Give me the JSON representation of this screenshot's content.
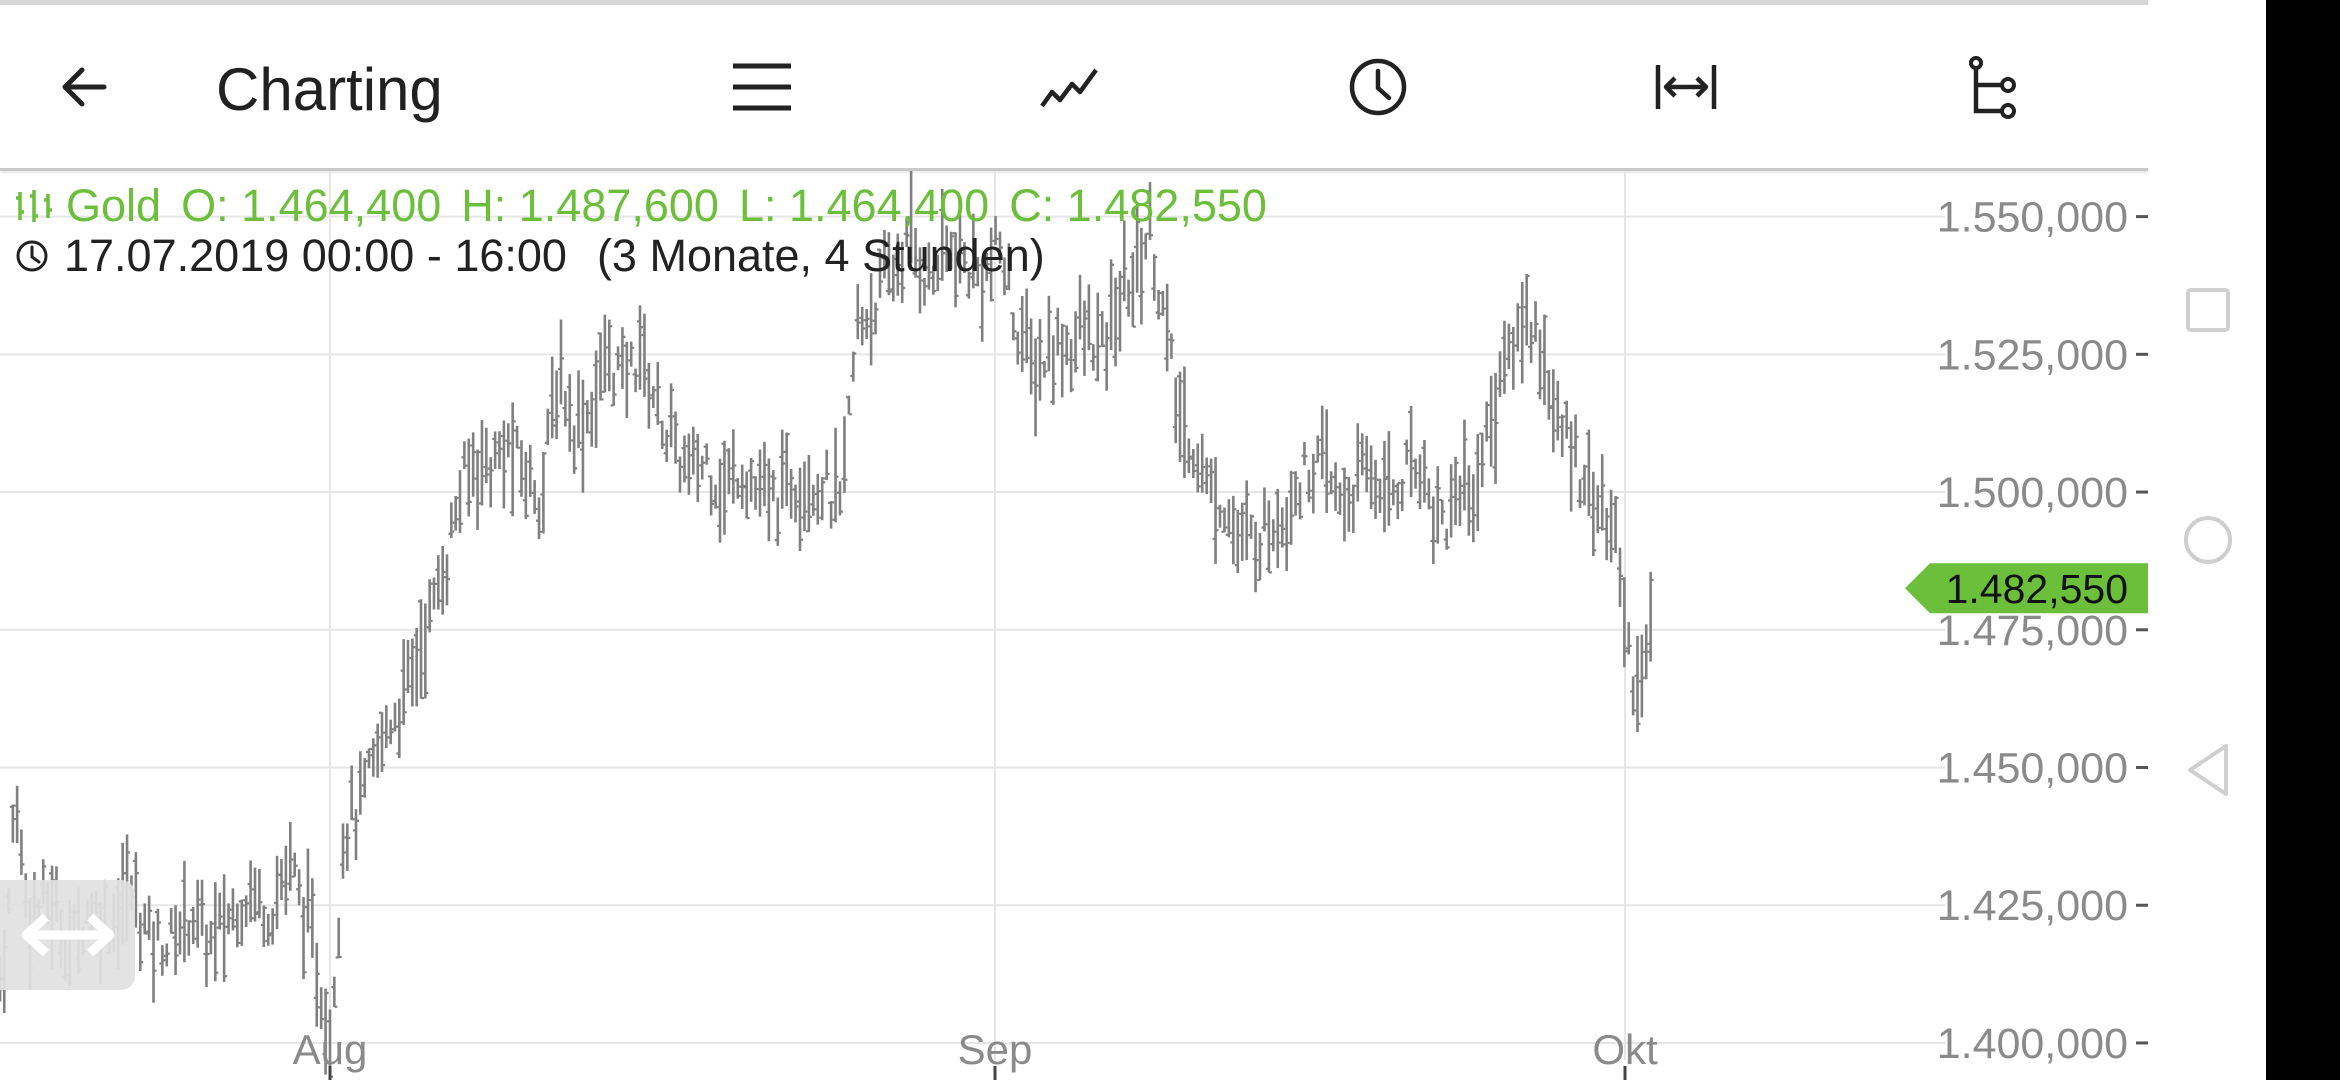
{
  "appbar": {
    "title": "Charting",
    "icons": [
      "arrow-left-icon",
      "menu-icon",
      "line-chart-icon",
      "clock-icon",
      "range-arrows-icon",
      "tree-icon"
    ]
  },
  "chart_info": {
    "instrument": "Gold",
    "open": "O: 1.464,400",
    "high": "H: 1.487,600",
    "low": "L: 1.464,400",
    "close": "C: 1.482,550",
    "time_range": "17.07.2019 00:00 - 16:00",
    "period": "(3 Monate, 4 Stunden)"
  },
  "price_tag": {
    "label": "1.482,550",
    "value": 1482550,
    "color": "#6cbf3a"
  },
  "nav": {
    "icons": [
      "square-icon",
      "circle-icon",
      "triangle-back-icon"
    ]
  },
  "chart_data": {
    "type": "ohlc",
    "x_ticks": [
      "Aug",
      "Sep",
      "Okt"
    ],
    "y_ticks": [
      "1.400,000",
      "1.425,000",
      "1.450,000",
      "1.475,000",
      "1.500,000",
      "1.525,000",
      "1.550,000"
    ],
    "y_tick_values": [
      1400000,
      1425000,
      1450000,
      1475000,
      1500000,
      1525000,
      1550000
    ],
    "ylim": [
      1396000,
      1561000
    ],
    "grid": true,
    "bar_color": "#808080",
    "series": [
      {
        "x_start": 0,
        "x_end": 30,
        "values": [
          1412000,
          1417000,
          1427000,
          1448000,
          1437000,
          1428000,
          1424000
        ]
      },
      {
        "x_start": 30,
        "x_end": 330,
        "values": [
          1424000,
          1426000,
          1418000,
          1425000,
          1422000,
          1428000,
          1419000,
          1418000,
          1424000,
          1418000,
          1423000,
          1428000,
          1424000,
          1433000,
          1420000,
          1401000
        ]
      },
      {
        "x_start": 330,
        "x_end": 460,
        "values": [
          1401000,
          1440000,
          1442000,
          1450000,
          1458000,
          1462000,
          1470000,
          1478000,
          1487000,
          1500000
        ]
      },
      {
        "x_start": 460,
        "x_end": 640,
        "values": [
          1500000,
          1506000,
          1505000,
          1508000,
          1503000,
          1500000,
          1522000,
          1512000,
          1515000,
          1525000,
          1520000,
          1526000
        ]
      },
      {
        "x_start": 640,
        "x_end": 840,
        "values": [
          1526000,
          1516000,
          1508000,
          1503000,
          1506000,
          1500000,
          1505000,
          1500000,
          1498000,
          1502000,
          1503000,
          1501000,
          1497000
        ]
      },
      {
        "x_start": 840,
        "x_end": 1000,
        "values": [
          1497000,
          1530000,
          1535000,
          1540000,
          1546000,
          1538000,
          1544000,
          1541000,
          1539000,
          1544000
        ]
      },
      {
        "x_start": 1000,
        "x_end": 1120,
        "values": [
          1544000,
          1530000,
          1522000,
          1526000,
          1527000,
          1529000,
          1525000,
          1535000
        ]
      },
      {
        "x_start": 1120,
        "x_end": 1180,
        "values": [
          1535000,
          1540000,
          1548000,
          1530000,
          1512000
        ]
      },
      {
        "x_start": 1180,
        "x_end": 1300,
        "values": [
          1512000,
          1508000,
          1500000,
          1498000,
          1490000,
          1492000,
          1494000,
          1497000,
          1502000
        ]
      },
      {
        "x_start": 1300,
        "x_end": 1420,
        "values": [
          1502000,
          1505000,
          1503000,
          1498000,
          1500000,
          1504000,
          1502000,
          1500000,
          1504000,
          1506000
        ]
      },
      {
        "x_start": 1420,
        "x_end": 1540,
        "values": [
          1506000,
          1497000,
          1495000,
          1502000,
          1500000,
          1510000,
          1520000,
          1527000,
          1532000,
          1528000
        ]
      },
      {
        "x_start": 1540,
        "x_end": 1620,
        "values": [
          1528000,
          1512000,
          1508000,
          1502000,
          1496000,
          1488000
        ]
      },
      {
        "x_start": 1620,
        "x_end": 1655,
        "values": [
          1488000,
          1470000,
          1466000,
          1468000,
          1482000
        ]
      }
    ]
  }
}
